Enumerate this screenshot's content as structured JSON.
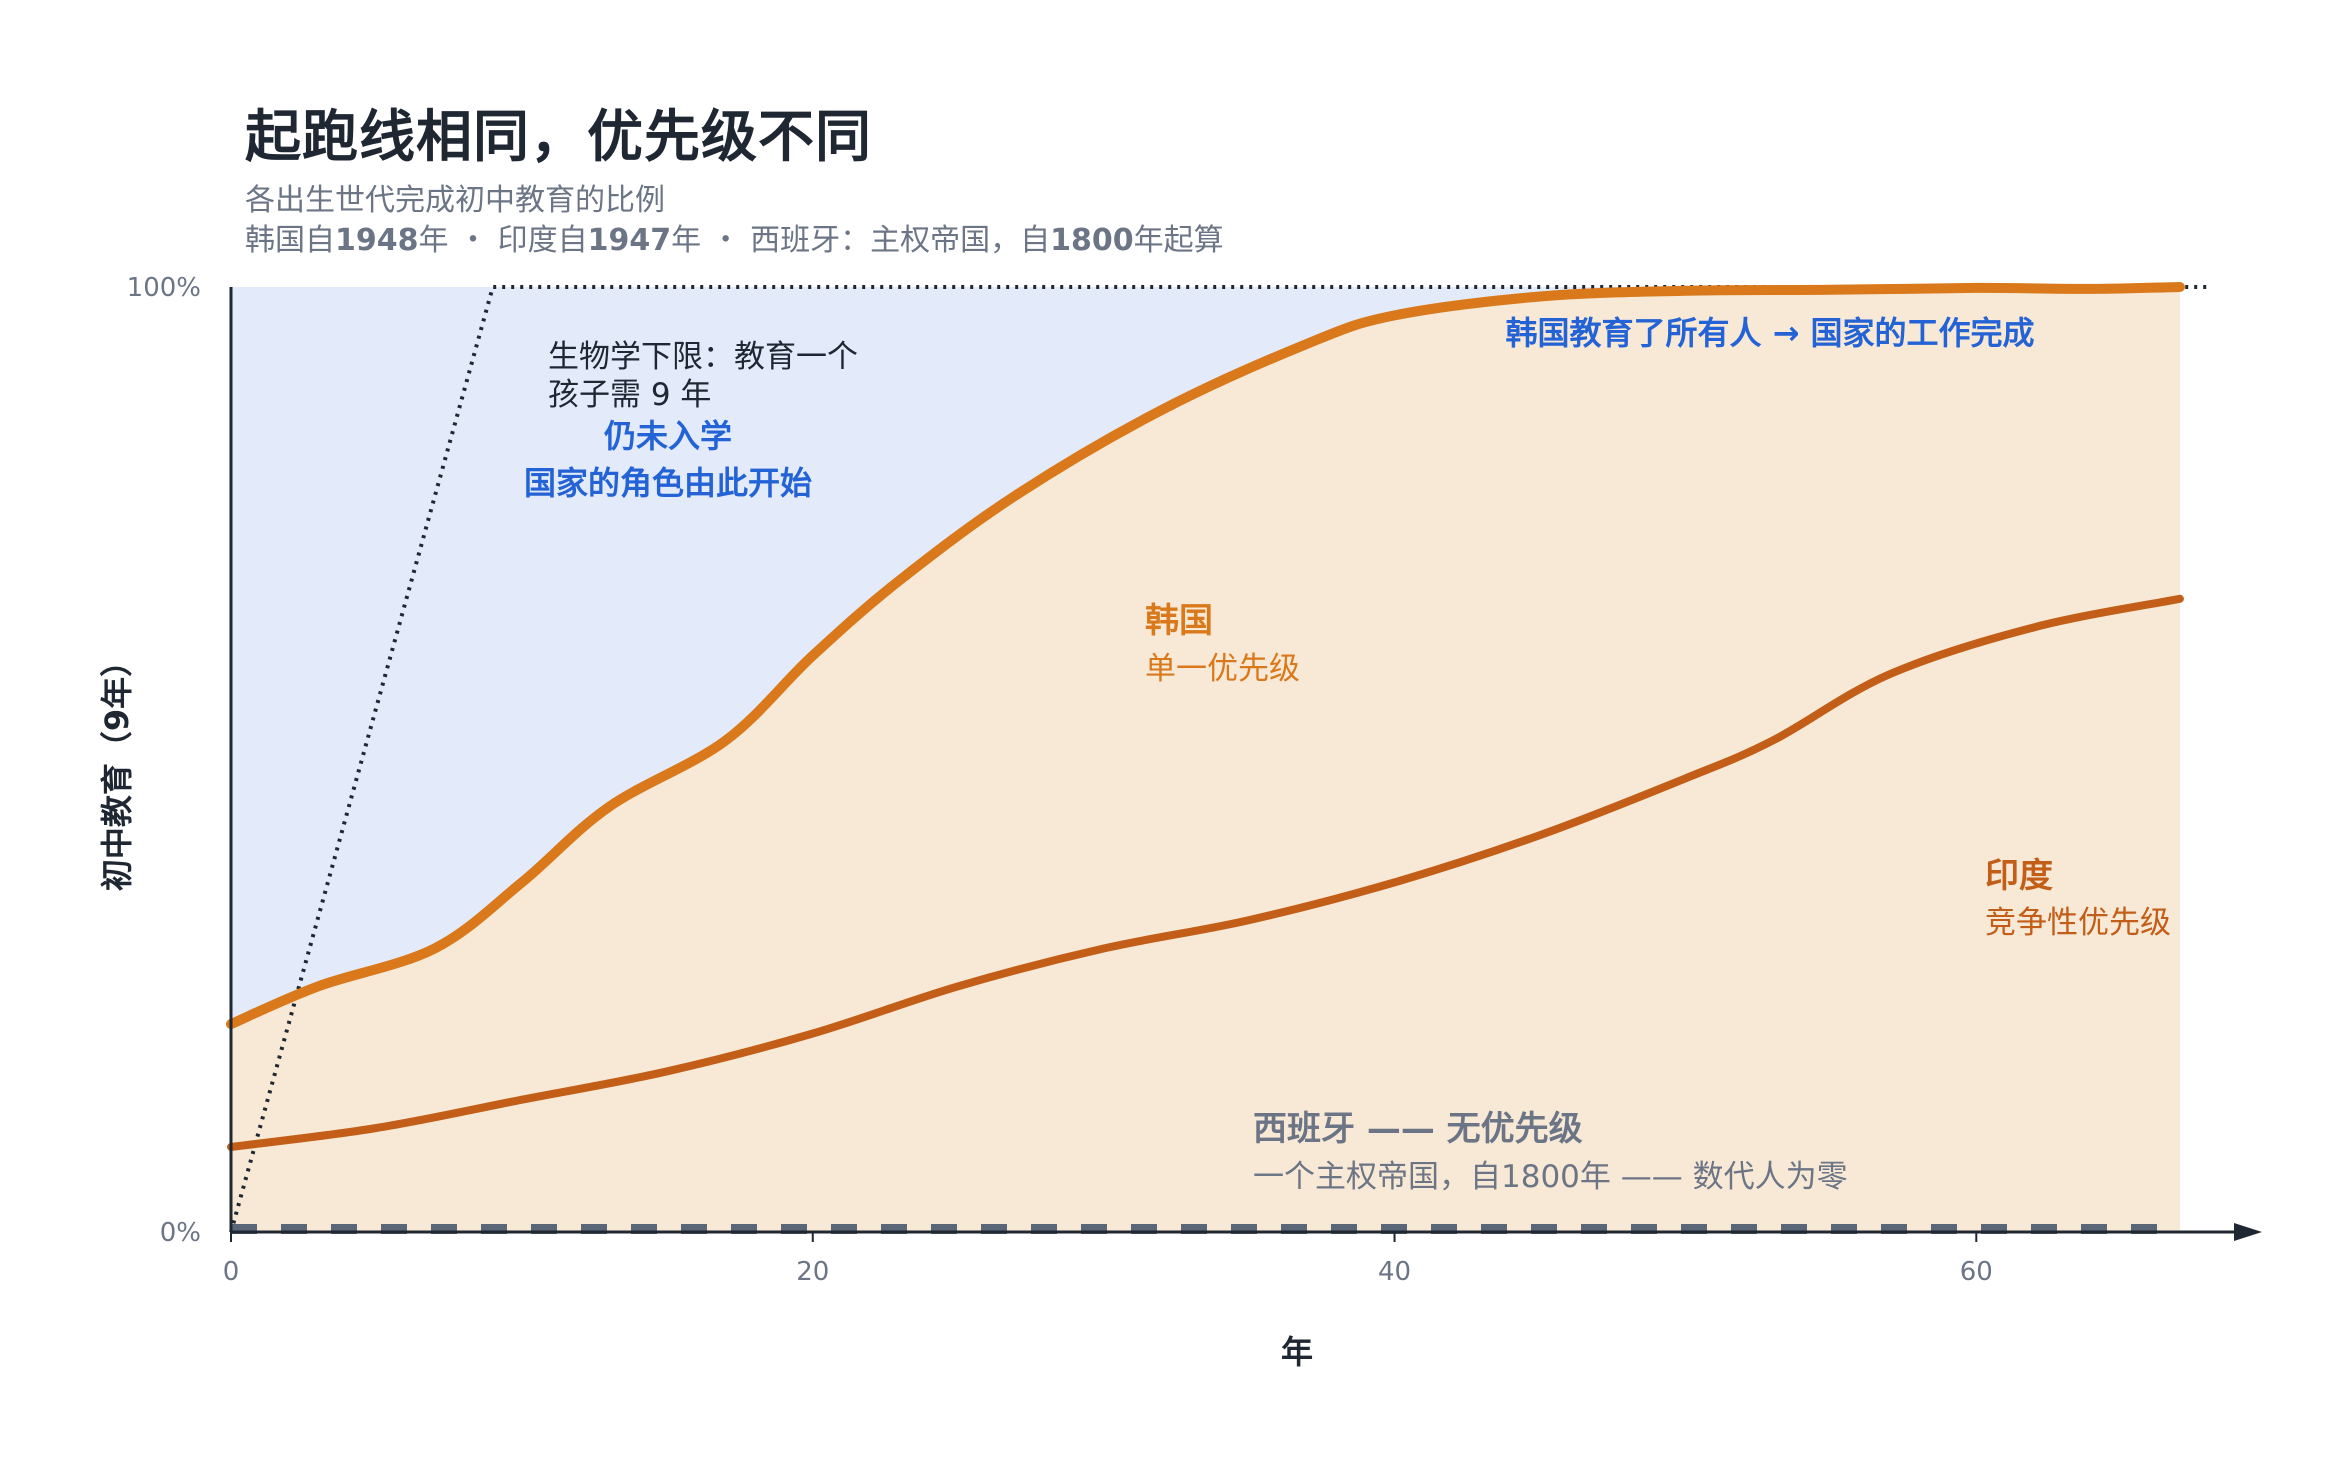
{
  "header": {
    "title": "起跑线相同，优先级不同",
    "subtitle": "各出生世代完成初中教育的比例",
    "note_parts": [
      "韩国自",
      "1948",
      "年 ・ 印度自",
      "1947",
      "年 ・ 西班牙：主权帝国，自",
      "1800",
      "年起算"
    ]
  },
  "annotations": {
    "bio_floor_line1": "生物学下限：教育一个",
    "bio_floor_line2": "孩子需 9 年",
    "not_enrolled": "仍未入学",
    "state_role": "国家的角色由此开始",
    "korea_done": "韩国教育了所有人 → 国家的工作完成",
    "korea_name": "韩国",
    "korea_sub": "单一优先级",
    "india_name": "印度",
    "india_sub": "竞争性优先级",
    "spain_name": "西班牙 —— 无优先级",
    "spain_sub": "一个主权帝国，自1800年 —— 数代人为零"
  },
  "colors": {
    "korea": "#d9791b",
    "india": "#c25e17",
    "spain": "#5b6676",
    "gap_fill": "#e3ebfa",
    "area_fill": "#f8e9d6",
    "axis": "#1f2733",
    "annotation_blue": "#2463d6"
  },
  "chart_data": {
    "type": "line",
    "xlabel": "年",
    "ylabel": "初中教育（9年）",
    "xlim": [
      0,
      68
    ],
    "ylim": [
      0,
      100
    ],
    "x_ticks": [
      "0",
      "20",
      "40",
      "60"
    ],
    "y_ticks": [
      "0%",
      "100%"
    ],
    "reference_line": {
      "x": [
        0,
        9,
        68
      ],
      "y": [
        0,
        100,
        100
      ]
    },
    "series": [
      {
        "name": "韩国",
        "x": [
          0,
          3,
          7,
          10,
          13,
          17,
          20,
          23,
          27,
          32,
          37,
          40,
          45,
          50,
          55,
          60,
          64,
          67
        ],
        "y": [
          22,
          26,
          30,
          37,
          45,
          52,
          61,
          69,
          78,
          87,
          94,
          97,
          99,
          99.6,
          99.7,
          99.9,
          99.8,
          100
        ]
      },
      {
        "name": "印度",
        "x": [
          0,
          5,
          10,
          15,
          20,
          25,
          30,
          35,
          40,
          45,
          50,
          53,
          57,
          62,
          67
        ],
        "y": [
          9,
          11,
          14,
          17,
          21,
          26,
          30,
          33,
          37,
          42,
          48,
          52,
          59,
          64,
          67
        ]
      },
      {
        "name": "西班牙",
        "x": [
          0,
          67
        ],
        "y": [
          0,
          0
        ]
      }
    ]
  }
}
